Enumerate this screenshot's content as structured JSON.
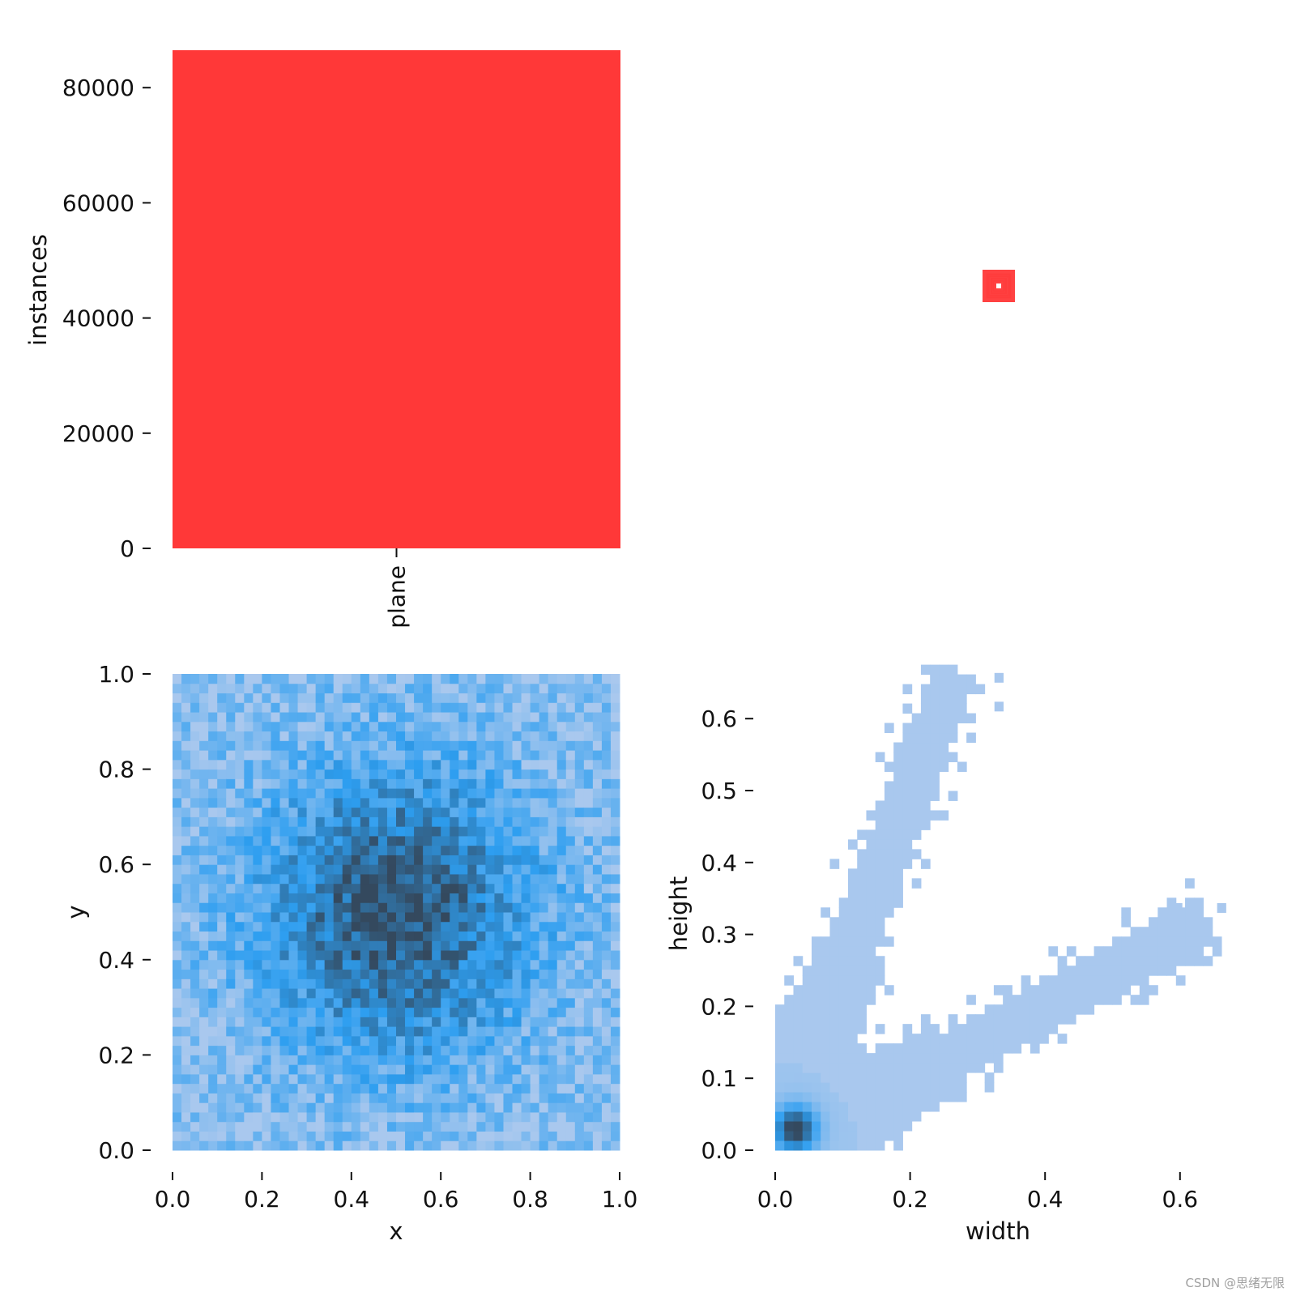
{
  "colors": {
    "bar": "#ff3838",
    "hist_light": "#a9c8ee",
    "hist_mid": "#2d9ef0",
    "hist_dark": "#34495e",
    "text": "#111111"
  },
  "watermark": "CSDN @思绪无限",
  "chart_data": [
    {
      "type": "bar",
      "categories": [
        "plane"
      ],
      "values": [
        86500
      ],
      "ylabel": "instances",
      "yticks": [
        "0",
        "20000",
        "40000",
        "60000",
        "80000"
      ],
      "ylim": [
        0,
        86500
      ]
    },
    {
      "type": "boxes",
      "description_visible": "overlaid bounding box outlines centred at the image centre",
      "box_sizes": [
        0.08,
        0.065,
        0.05,
        0.035,
        0.01
      ],
      "color": "#ff3838"
    },
    {
      "type": "heatmap",
      "xlabel": "x",
      "ylabel": "y",
      "xlim": [
        0,
        1
      ],
      "ylim": [
        0,
        1
      ],
      "xticks": [
        "0.0",
        "0.2",
        "0.4",
        "0.6",
        "0.8",
        "1.0"
      ],
      "yticks": [
        "0.0",
        "0.2",
        "0.4",
        "0.6",
        "0.8",
        "1.0"
      ],
      "bins": 50,
      "peak": [
        0.5,
        0.5
      ]
    },
    {
      "type": "heatmap",
      "xlabel": "width",
      "ylabel": "height",
      "xlim": [
        0,
        0.66
      ],
      "ylim": [
        0,
        0.66
      ],
      "xticks": [
        "0.0",
        "0.2",
        "0.4",
        "0.6"
      ],
      "yticks": [
        "0.0",
        "0.1",
        "0.2",
        "0.3",
        "0.4",
        "0.5",
        "0.6"
      ],
      "peak": [
        0.03,
        0.03
      ],
      "branches": [
        {
          "slope": 2.5,
          "description": "tall boxes"
        },
        {
          "slope": 0.5,
          "description": "wide boxes"
        }
      ]
    }
  ]
}
